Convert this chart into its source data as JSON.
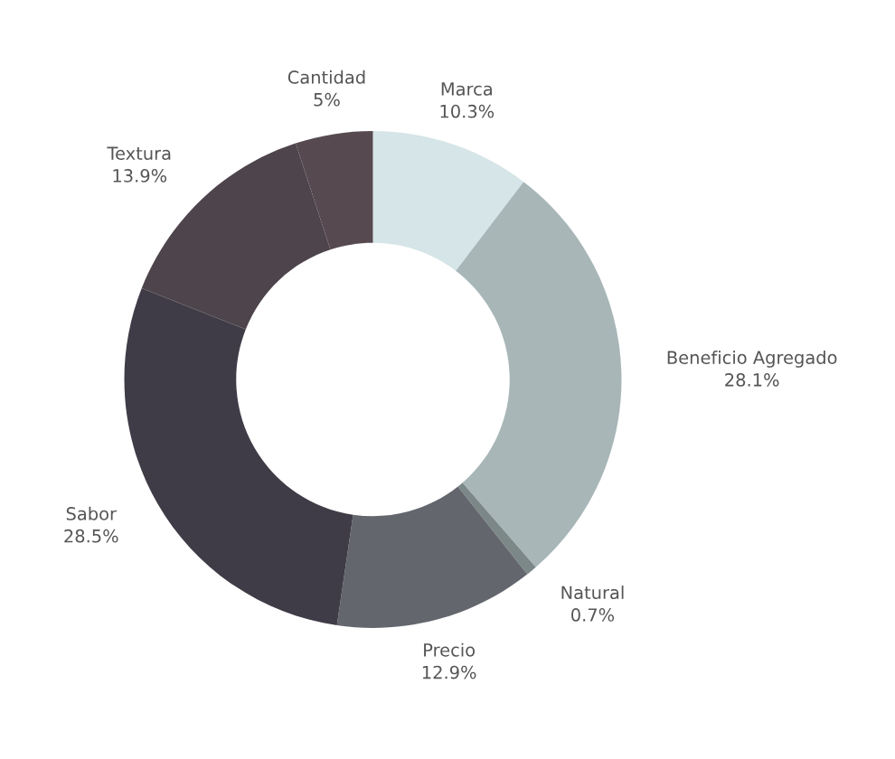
{
  "chart_data": {
    "type": "donut",
    "categories": [
      "Marca",
      "Beneficio Agregado",
      "Natural",
      "Precio",
      "Sabor",
      "Textura",
      "Cantidad"
    ],
    "values": [
      10.3,
      28.1,
      0.7,
      12.9,
      28.5,
      13.9,
      5
    ],
    "value_labels": [
      "10.3%",
      "28.1%",
      "0.7%",
      "12.9%",
      "28.5%",
      "13.9%",
      "5%"
    ],
    "colors": [
      "#d6e5e7",
      "#a8b6b8",
      "#7c8788",
      "#63666d",
      "#3f3c47",
      "#4e454c",
      "#564a50"
    ],
    "legend": false
  }
}
